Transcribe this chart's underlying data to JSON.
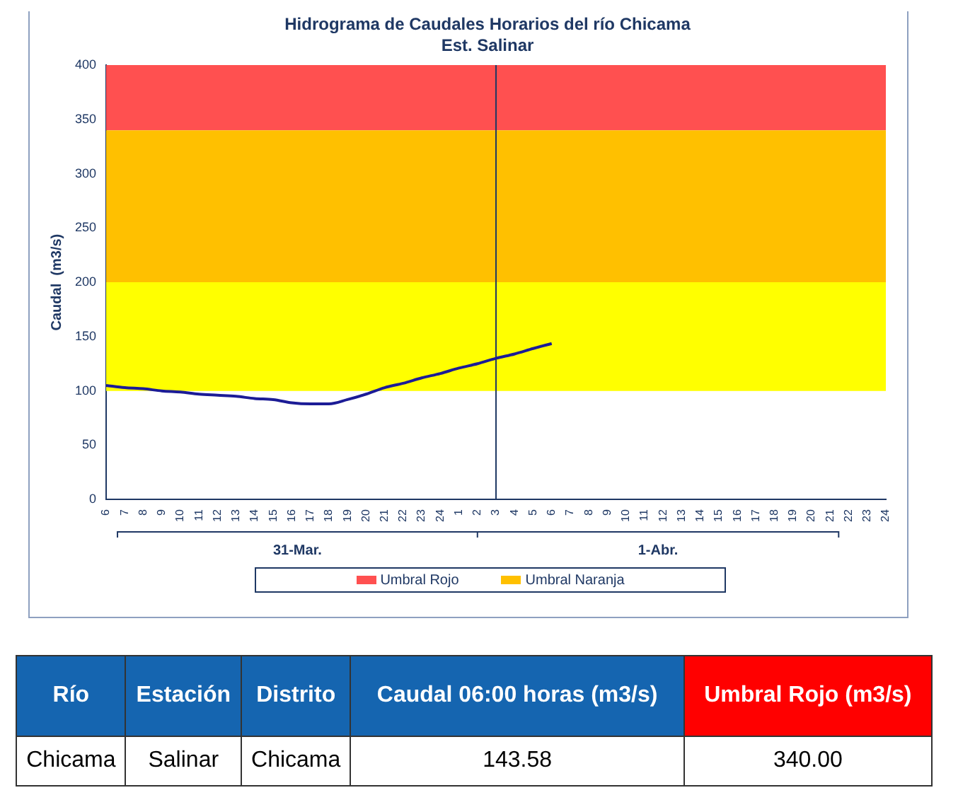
{
  "chart_data": {
    "type": "line",
    "title": "Hidrograma de Caudales Horarios del río Chicama",
    "subtitle": "Est. Salinar",
    "ylabel": "Caudal  (m3/s)",
    "categories": [
      "6",
      "7",
      "8",
      "9",
      "10",
      "11",
      "12",
      "13",
      "14",
      "15",
      "16",
      "17",
      "18",
      "19",
      "20",
      "21",
      "22",
      "23",
      "24",
      "1",
      "2",
      "3",
      "4",
      "5",
      "6",
      "7",
      "8",
      "9",
      "10",
      "11",
      "12",
      "13",
      "14",
      "15",
      "16",
      "17",
      "18",
      "19",
      "20",
      "21",
      "22",
      "23",
      "24"
    ],
    "series": [
      {
        "color": "#1c1c96",
        "values": [
          105,
          103,
          102,
          100,
          99,
          97,
          96,
          95,
          93,
          92,
          89,
          88,
          88,
          92,
          97,
          103,
          107,
          112,
          116,
          121,
          125,
          130,
          134,
          139,
          143.58,
          null,
          null,
          null,
          null,
          null,
          null,
          null,
          null,
          null,
          null,
          null,
          null,
          null,
          null,
          null,
          null,
          null,
          null
        ]
      }
    ],
    "ylim": [
      0,
      400
    ],
    "yticks": [
      0,
      50,
      100,
      150,
      200,
      250,
      300,
      350,
      400
    ],
    "bands": [
      {
        "axis": "y",
        "from": 340,
        "to": 400,
        "label": "Umbral Rojo",
        "color": "#ff5050"
      },
      {
        "axis": "y",
        "from": 200,
        "to": 340,
        "label": "Umbral Naranja",
        "color": "#ffc000"
      },
      {
        "axis": "y",
        "from": 100,
        "to": 200,
        "color": "#ffff00"
      }
    ],
    "ref_lines": [
      {
        "axis": "x",
        "value": "3",
        "color": "#1f3864"
      }
    ],
    "legend": "bottom",
    "annotations": [
      "31-Mar.",
      "1-Abr.",
      "Río",
      "Estación",
      "Distrito",
      "Caudal  06:00 horas (m3/s)",
      "Umbral Rojo (m3/s)",
      "Chicama",
      "Salinar",
      "Chicama",
      "143.58",
      "340.00"
    ]
  }
}
